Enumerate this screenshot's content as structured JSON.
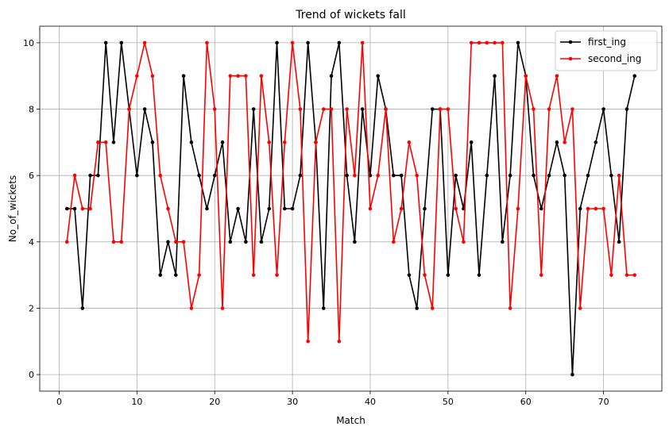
{
  "chart_data": {
    "type": "line",
    "title": "Trend of wickets fall",
    "xlabel": "Match",
    "ylabel": "No_of_wickets",
    "xlim": [
      -2.5,
      77.5
    ],
    "ylim": [
      -0.5,
      10.5
    ],
    "xticks": [
      0,
      10,
      20,
      30,
      40,
      50,
      60,
      70
    ],
    "yticks": [
      0,
      2,
      4,
      6,
      8,
      10
    ],
    "grid": true,
    "legend": "top-right",
    "series": [
      {
        "name": "first_ing",
        "color": "#000000",
        "x": [
          1,
          2,
          3,
          4,
          5,
          6,
          7,
          8,
          9,
          10,
          11,
          12,
          13,
          14,
          15,
          16,
          17,
          18,
          19,
          20,
          21,
          22,
          23,
          24,
          25,
          26,
          27,
          28,
          29,
          30,
          31,
          32,
          33,
          34,
          35,
          36,
          37,
          38,
          39,
          40,
          41,
          42,
          43,
          44,
          45,
          46,
          47,
          48,
          49,
          50,
          51,
          52,
          53,
          54,
          55,
          56,
          57,
          58,
          59,
          60,
          61,
          62,
          63,
          64,
          65,
          66,
          67,
          68,
          69,
          70,
          71,
          72,
          73,
          74
        ],
        "y": [
          5,
          5,
          2,
          6,
          6,
          10,
          7,
          10,
          8,
          6,
          8,
          7,
          3,
          4,
          3,
          9,
          7,
          6,
          5,
          6,
          7,
          4,
          5,
          4,
          8,
          4,
          5,
          10,
          5,
          5,
          6,
          10,
          7,
          2,
          9,
          10,
          6,
          4,
          8,
          6,
          9,
          8,
          6,
          6,
          3,
          2,
          5,
          8,
          8,
          3,
          6,
          5,
          7,
          3,
          6,
          9,
          4,
          6,
          10,
          9,
          6,
          5,
          6,
          7,
          6,
          0,
          5,
          6,
          7,
          8,
          6,
          4,
          8,
          9
        ]
      },
      {
        "name": "second_ing",
        "color": "#ff0000",
        "x": [
          1,
          2,
          3,
          4,
          5,
          6,
          7,
          8,
          9,
          10,
          11,
          12,
          13,
          14,
          15,
          16,
          17,
          18,
          19,
          20,
          21,
          22,
          23,
          24,
          25,
          26,
          27,
          28,
          29,
          30,
          31,
          32,
          33,
          34,
          35,
          36,
          37,
          38,
          39,
          40,
          41,
          42,
          43,
          44,
          45,
          46,
          47,
          48,
          49,
          50,
          51,
          52,
          53,
          54,
          55,
          56,
          57,
          58,
          59,
          60,
          61,
          62,
          63,
          64,
          65,
          66,
          67,
          68,
          69,
          70,
          71,
          72,
          73,
          74
        ],
        "y": [
          4,
          6,
          5,
          5,
          7,
          7,
          4,
          4,
          8,
          9,
          10,
          9,
          6,
          5,
          4,
          4,
          2,
          3,
          10,
          8,
          2,
          9,
          9,
          9,
          3,
          9,
          7,
          3,
          7,
          10,
          8,
          1,
          7,
          8,
          8,
          1,
          8,
          6,
          10,
          5,
          6,
          8,
          4,
          5,
          7,
          6,
          3,
          2,
          8,
          8,
          5,
          4,
          10,
          10,
          10,
          10,
          10,
          2,
          5,
          9,
          8,
          3,
          8,
          9,
          7,
          8,
          2,
          5,
          5,
          5,
          3,
          6,
          3,
          3
        ]
      }
    ]
  }
}
